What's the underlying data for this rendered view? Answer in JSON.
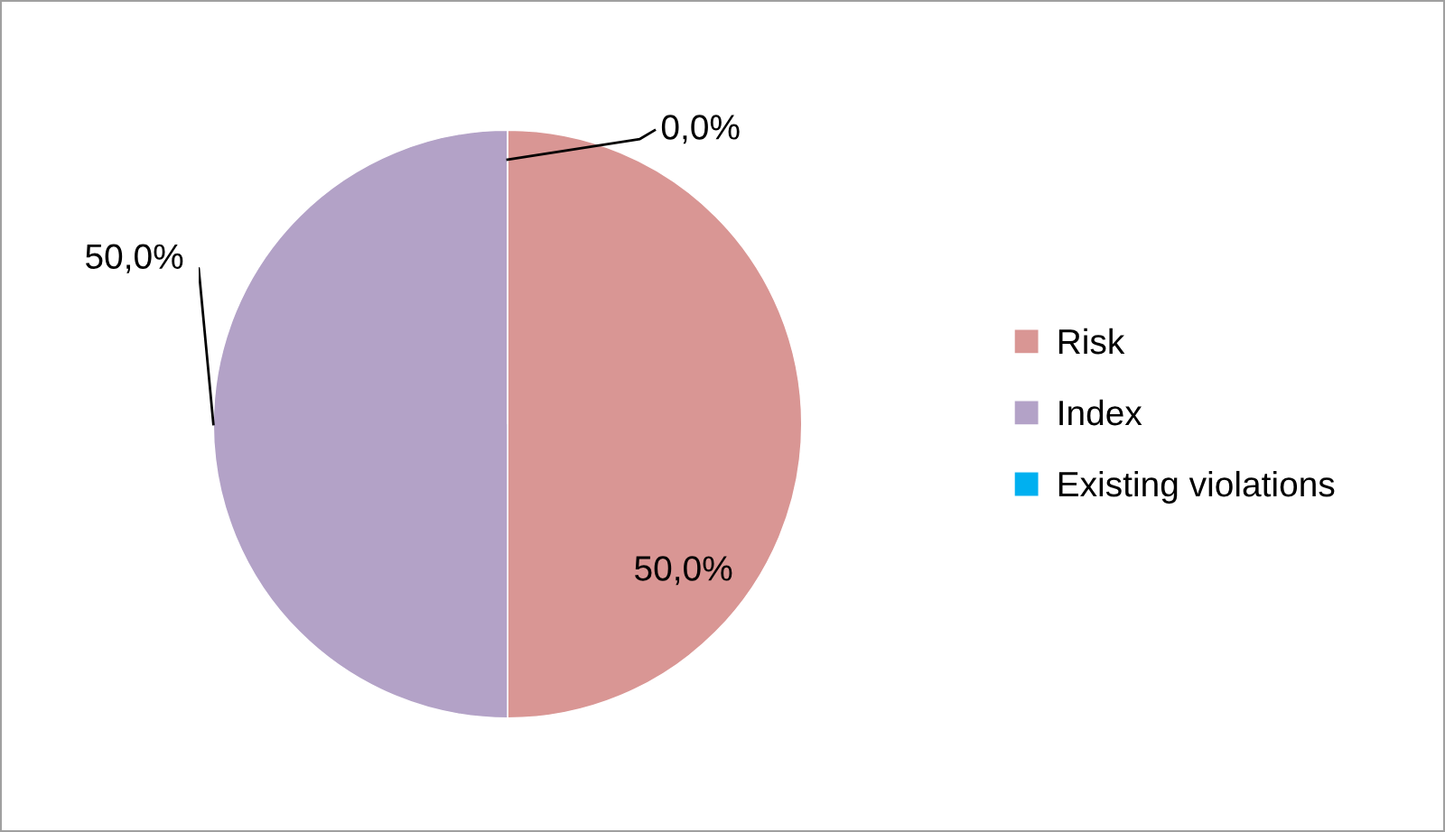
{
  "chart_data": {
    "type": "pie",
    "categories": [
      "Risk",
      "Index",
      "Existing violations"
    ],
    "values": [
      50,
      50,
      0
    ],
    "colors": [
      "#d99694",
      "#b3a2c7",
      "#00b0f0"
    ],
    "value_labels": [
      "50,0%",
      "50,0%",
      "0,0%"
    ],
    "legend": "right"
  }
}
